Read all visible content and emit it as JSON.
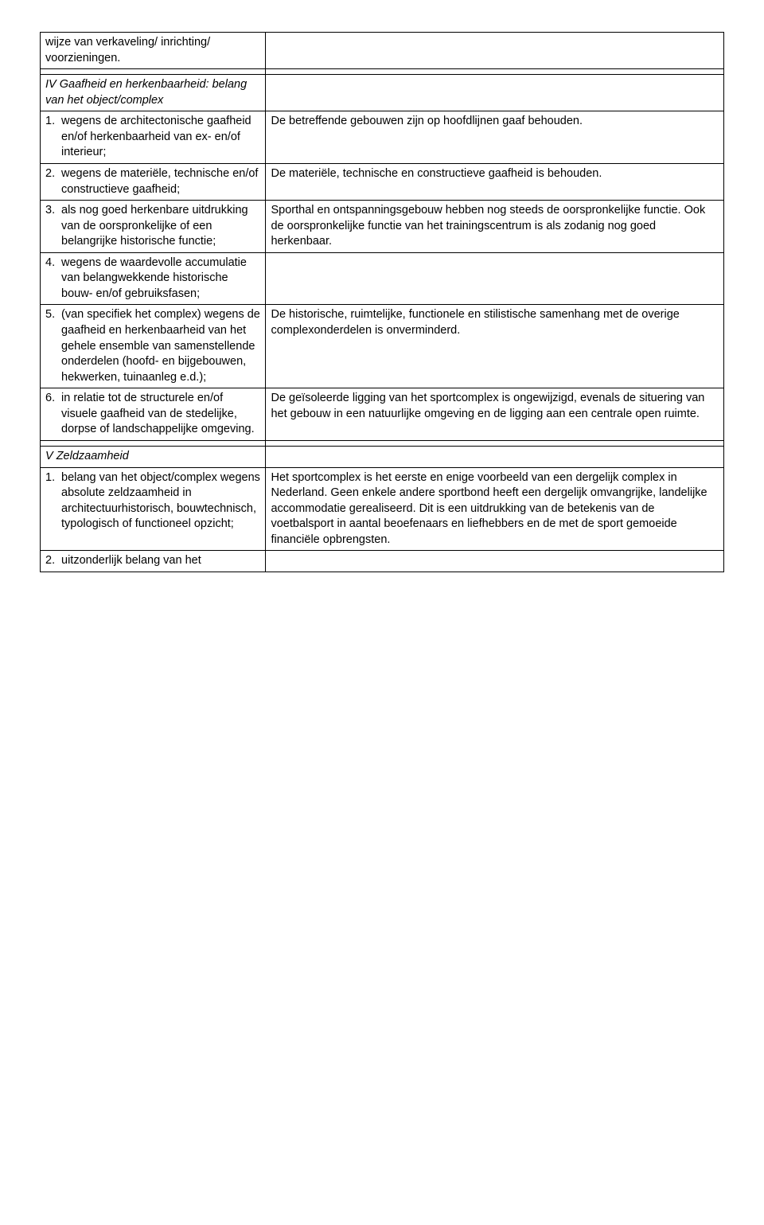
{
  "background_color": "#ffffff",
  "text_color": "#000000",
  "border_color": "#000000",
  "font_family": "Verdana",
  "font_size_pt": 11,
  "columns": {
    "left_width_pct": 33,
    "right_width_pct": 67
  },
  "rows": [
    {
      "left_num": "",
      "left_text": "wijze van verkaveling/ inrichting/ voorzieningen.",
      "right": "",
      "italic": false
    },
    {
      "spacer": true
    },
    {
      "left_num": "",
      "left_text": "IV Gaafheid en herkenbaarheid: belang van het object/complex",
      "right": "",
      "italic": true
    },
    {
      "left_num": "1.",
      "left_text": "wegens de architectonische gaafheid en/of herkenbaarheid van ex- en/of interieur;",
      "right": "De betreffende gebouwen zijn op hoofdlijnen gaaf behouden.",
      "italic": false
    },
    {
      "left_num": "2.",
      "left_text": "wegens de materiële, technische en/of constructieve gaafheid;",
      "right": "De materiële, technische en constructieve gaafheid is behouden.",
      "italic": false
    },
    {
      "left_num": "3.",
      "left_text": "als nog goed herkenbare uitdrukking van de oorspronkelijke of een belangrijke historische functie;",
      "right": "Sporthal en ontspanningsgebouw hebben nog steeds de oorspronkelijke functie. Ook de oorspronkelijke functie van het trainingscentrum is als zodanig nog goed herkenbaar.",
      "italic": false
    },
    {
      "left_num": "4.",
      "left_text": "wegens de waardevolle accumulatie van belangwekkende historische bouw- en/of gebruiksfasen;",
      "right": "",
      "italic": false
    },
    {
      "left_num": "5.",
      "left_text": "(van specifiek het complex) wegens de gaafheid en herkenbaarheid van het gehele ensemble van samenstellende onderdelen (hoofd- en bijgebouwen, hekwerken, tuinaanleg e.d.);",
      "right": "De historische, ruimtelijke, functionele en stilistische samenhang met de overige complexonderdelen is onverminderd.",
      "italic": false
    },
    {
      "left_num": "6.",
      "left_text": "in relatie tot de structurele en/of visuele gaafheid van de stedelijke, dorpse of landschappelijke omgeving.",
      "right": "De geïsoleerde ligging van het sportcomplex is ongewijzigd, evenals de situering van het gebouw in een natuurlijke omgeving en de ligging aan een centrale open ruimte.",
      "italic": false
    },
    {
      "spacer": true
    },
    {
      "left_num": "",
      "left_text": "V Zeldzaamheid",
      "right": "",
      "italic": true
    },
    {
      "left_num": "1.",
      "left_text": "belang van het object/complex wegens absolute zeldzaamheid in architectuurhistorisch, bouwtechnisch, typologisch of functioneel opzicht;",
      "right": "Het sportcomplex is het eerste en enige voorbeeld van een dergelijk complex in Nederland. Geen enkele andere sportbond heeft een dergelijk omvangrijke, landelijke accommodatie gerealiseerd. Dit is een uitdrukking van de betekenis van de voetbalsport in aantal beoefenaars en liefhebbers en de met de sport gemoeide financiële opbrengsten.",
      "italic": false
    },
    {
      "left_num": "2.",
      "left_text": "uitzonderlijk belang van het",
      "right": "",
      "italic": false
    }
  ]
}
